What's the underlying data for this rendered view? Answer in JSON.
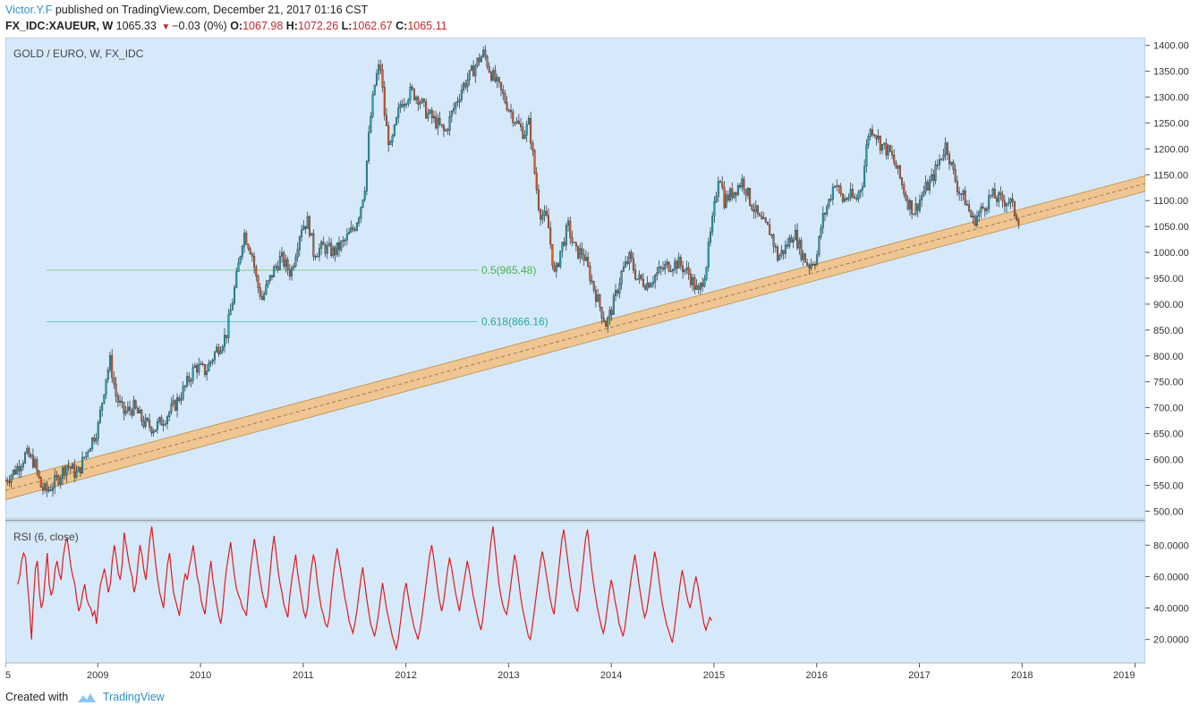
{
  "header": {
    "author": "Victor.Y.F",
    "published_text": "published on TradingView.com, December 21, 2017 01:16 CST",
    "symbol": "FX_IDC:XAUEUR, W",
    "last": "1065.33",
    "change": "−0.03 (0%)",
    "o_label": "O:",
    "open": "1067.98",
    "h_label": "H:",
    "high": "1072.26",
    "l_label": "L:",
    "low": "1062.67",
    "c_label": "C:",
    "close": "1065.11"
  },
  "footer": {
    "created_with": "Created with",
    "brand": "TradingView"
  },
  "colors": {
    "background": "#d6e9fb",
    "candle_up": "#2aa7b8",
    "candle_down": "#e05b2b",
    "channel_fill": "#f3c07f",
    "fib_line": "#7fd27f",
    "rsi_line": "#e31a1c"
  },
  "chart_data": [
    {
      "type": "candlestick",
      "title": "GOLD / EURO, W, FX_IDC",
      "x_ticks": [
        "5",
        "2009",
        "2010",
        "2011",
        "2012",
        "2013",
        "2014",
        "2015",
        "2016",
        "2017",
        "2018",
        "2019"
      ],
      "y_ticks": [
        "1400.00",
        "1350.00",
        "1300.00",
        "1250.00",
        "1200.00",
        "1150.00",
        "1100.00",
        "1050.00",
        "1000.00",
        "950.00",
        "900.00",
        "850.00",
        "800.00",
        "750.00",
        "700.00",
        "650.00",
        "600.00",
        "550.00",
        "500.00"
      ],
      "ylim": [
        485,
        1415
      ],
      "xlim": [
        2008.1,
        2019.2
      ],
      "fib_levels": [
        {
          "label": "0.5(965.48)",
          "value": 965.48,
          "x_start": 2008.5,
          "x_end": 2012.7
        },
        {
          "label": "0.618(866.16)",
          "value": 866.16,
          "x_start": 2008.5,
          "x_end": 2012.7
        }
      ],
      "channel": {
        "x_start": 2008.1,
        "x_end": 2019.2,
        "lower_start": 522,
        "lower_end": 1118,
        "upper_start": 558,
        "upper_end": 1148
      },
      "price_path": [
        [
          2008.1,
          560
        ],
        [
          2008.2,
          580
        ],
        [
          2008.3,
          610
        ],
        [
          2008.38,
          595
        ],
        [
          2008.45,
          545
        ],
        [
          2008.5,
          538
        ],
        [
          2008.6,
          560
        ],
        [
          2008.7,
          590
        ],
        [
          2008.8,
          570
        ],
        [
          2008.9,
          620
        ],
        [
          2009.0,
          660
        ],
        [
          2009.08,
          760
        ],
        [
          2009.12,
          790
        ],
        [
          2009.18,
          720
        ],
        [
          2009.25,
          690
        ],
        [
          2009.35,
          700
        ],
        [
          2009.45,
          670
        ],
        [
          2009.55,
          660
        ],
        [
          2009.65,
          680
        ],
        [
          2009.75,
          705
        ],
        [
          2009.85,
          740
        ],
        [
          2009.95,
          780
        ],
        [
          2010.05,
          770
        ],
        [
          2010.15,
          810
        ],
        [
          2010.25,
          840
        ],
        [
          2010.35,
          950
        ],
        [
          2010.42,
          1040
        ],
        [
          2010.5,
          1000
        ],
        [
          2010.55,
          940
        ],
        [
          2010.6,
          910
        ],
        [
          2010.7,
          960
        ],
        [
          2010.78,
          990
        ],
        [
          2010.88,
          960
        ],
        [
          2010.98,
          1050
        ],
        [
          2011.05,
          1060
        ],
        [
          2011.1,
          1000
        ],
        [
          2011.2,
          1010
        ],
        [
          2011.3,
          1000
        ],
        [
          2011.4,
          1020
        ],
        [
          2011.5,
          1050
        ],
        [
          2011.55,
          1080
        ],
        [
          2011.6,
          1130
        ],
        [
          2011.65,
          1250
        ],
        [
          2011.7,
          1330
        ],
        [
          2011.75,
          1365
        ],
        [
          2011.8,
          1250
        ],
        [
          2011.85,
          1200
        ],
        [
          2011.95,
          1290
        ],
        [
          2012.05,
          1310
        ],
        [
          2012.12,
          1300
        ],
        [
          2012.2,
          1270
        ],
        [
          2012.3,
          1250
        ],
        [
          2012.38,
          1230
        ],
        [
          2012.45,
          1270
        ],
        [
          2012.55,
          1320
        ],
        [
          2012.62,
          1340
        ],
        [
          2012.7,
          1370
        ],
        [
          2012.76,
          1385
        ],
        [
          2012.82,
          1350
        ],
        [
          2012.9,
          1320
        ],
        [
          2013.0,
          1280
        ],
        [
          2013.08,
          1250
        ],
        [
          2013.15,
          1230
        ],
        [
          2013.2,
          1250
        ],
        [
          2013.25,
          1160
        ],
        [
          2013.3,
          1080
        ],
        [
          2013.38,
          1060
        ],
        [
          2013.45,
          950
        ],
        [
          2013.5,
          1000
        ],
        [
          2013.58,
          1050
        ],
        [
          2013.65,
          1000
        ],
        [
          2013.72,
          1000
        ],
        [
          2013.8,
          950
        ],
        [
          2013.88,
          900
        ],
        [
          2013.95,
          860
        ],
        [
          2014.02,
          900
        ],
        [
          2014.1,
          960
        ],
        [
          2014.18,
          990
        ],
        [
          2014.25,
          950
        ],
        [
          2014.35,
          940
        ],
        [
          2014.45,
          960
        ],
        [
          2014.55,
          975
        ],
        [
          2014.65,
          980
        ],
        [
          2014.75,
          960
        ],
        [
          2014.85,
          920
        ],
        [
          2014.92,
          970
        ],
        [
          2015.0,
          1080
        ],
        [
          2015.05,
          1160
        ],
        [
          2015.1,
          1100
        ],
        [
          2015.2,
          1120
        ],
        [
          2015.28,
          1140
        ],
        [
          2015.35,
          1100
        ],
        [
          2015.45,
          1060
        ],
        [
          2015.55,
          1040
        ],
        [
          2015.62,
          990
        ],
        [
          2015.7,
          1010
        ],
        [
          2015.78,
          1040
        ],
        [
          2015.85,
          1000
        ],
        [
          2015.92,
          975
        ],
        [
          2016.0,
          990
        ],
        [
          2016.05,
          1060
        ],
        [
          2016.12,
          1100
        ],
        [
          2016.18,
          1140
        ],
        [
          2016.25,
          1100
        ],
        [
          2016.32,
          1110
        ],
        [
          2016.38,
          1100
        ],
        [
          2016.45,
          1140
        ],
        [
          2016.5,
          1230
        ],
        [
          2016.55,
          1240
        ],
        [
          2016.62,
          1210
        ],
        [
          2016.72,
          1190
        ],
        [
          2016.8,
          1150
        ],
        [
          2016.88,
          1100
        ],
        [
          2016.95,
          1080
        ],
        [
          2017.05,
          1120
        ],
        [
          2017.12,
          1140
        ],
        [
          2017.2,
          1180
        ],
        [
          2017.26,
          1210
        ],
        [
          2017.32,
          1160
        ],
        [
          2017.38,
          1120
        ],
        [
          2017.45,
          1100
        ],
        [
          2017.52,
          1060
        ],
        [
          2017.6,
          1080
        ],
        [
          2017.7,
          1110
        ],
        [
          2017.8,
          1100
        ],
        [
          2017.88,
          1100
        ],
        [
          2017.92,
          1080
        ],
        [
          2017.97,
          1065
        ]
      ]
    },
    {
      "type": "line",
      "title": "RSI (6, close)",
      "y_ticks": [
        "80.0000",
        "60.0000",
        "40.0000",
        "20.0000"
      ],
      "ylim": [
        5,
        95
      ],
      "xlim": [
        2008.1,
        2019.2
      ],
      "series": [
        {
          "x_start": 2008.22,
          "x_step": 0.0192,
          "values": [
            55,
            60,
            70,
            75,
            72,
            55,
            40,
            20,
            45,
            65,
            70,
            50,
            40,
            45,
            60,
            75,
            55,
            48,
            52,
            65,
            70,
            62,
            58,
            72,
            80,
            85,
            76,
            66,
            60,
            55,
            45,
            38,
            42,
            50,
            55,
            46,
            42,
            40,
            35,
            38,
            30,
            45,
            55,
            60,
            65,
            58,
            50,
            55,
            70,
            80,
            72,
            62,
            58,
            68,
            88,
            80,
            72,
            65,
            60,
            50,
            55,
            68,
            80,
            74,
            64,
            58,
            70,
            84,
            92,
            80,
            68,
            58,
            50,
            45,
            40,
            55,
            68,
            75,
            62,
            50,
            45,
            40,
            35,
            45,
            55,
            62,
            58,
            66,
            72,
            80,
            70,
            60,
            55,
            45,
            40,
            36,
            48,
            60,
            70,
            58,
            50,
            42,
            35,
            30,
            40,
            55,
            66,
            74,
            82,
            70,
            60,
            52,
            48,
            45,
            40,
            38,
            35,
            50,
            64,
            74,
            84,
            76,
            66,
            58,
            50,
            45,
            40,
            48,
            62,
            76,
            86,
            76,
            64,
            56,
            50,
            42,
            38,
            34,
            48,
            58,
            66,
            74,
            62,
            54,
            46,
            38,
            34,
            40,
            55,
            66,
            74,
            68,
            56,
            48,
            40,
            36,
            30,
            28,
            34,
            48,
            60,
            70,
            78,
            70,
            62,
            54,
            46,
            40,
            32,
            28,
            24,
            30,
            38,
            48,
            58,
            66,
            56,
            46,
            38,
            30,
            26,
            22,
            28,
            36,
            46,
            56,
            48,
            40,
            34,
            28,
            22,
            18,
            14,
            20,
            30,
            40,
            50,
            56,
            48,
            40,
            34,
            28,
            24,
            20,
            26,
            34,
            44,
            54,
            64,
            74,
            80,
            72,
            62,
            52,
            44,
            38,
            44,
            54,
            64,
            72,
            66,
            58,
            50,
            44,
            38,
            46,
            54,
            62,
            70,
            64,
            56,
            48,
            42,
            36,
            30,
            26,
            34,
            46,
            58,
            70,
            82,
            92,
            80,
            68,
            56,
            48,
            42,
            38,
            36,
            44,
            54,
            64,
            74,
            68,
            58,
            48,
            40,
            34,
            28,
            22,
            20,
            28,
            38,
            48,
            58,
            68,
            76,
            70,
            62,
            54,
            46,
            40,
            36,
            48,
            60,
            72,
            84,
            90,
            80,
            70,
            60,
            52,
            46,
            40,
            38,
            48,
            60,
            72,
            84,
            90,
            78,
            66,
            56,
            48,
            40,
            34,
            28,
            24,
            30,
            40,
            50,
            58,
            52,
            44,
            38,
            30,
            26,
            22,
            28,
            38,
            48,
            58,
            66,
            74,
            66,
            56,
            48,
            40,
            34,
            38,
            46,
            56,
            66,
            76,
            70,
            60,
            50,
            42,
            36,
            30,
            26,
            22,
            18,
            26,
            36,
            46,
            56,
            64,
            58,
            50,
            44,
            40,
            46,
            54,
            60,
            54,
            46,
            38,
            30,
            26,
            30,
            34,
            32
          ]
        }
      ]
    }
  ]
}
